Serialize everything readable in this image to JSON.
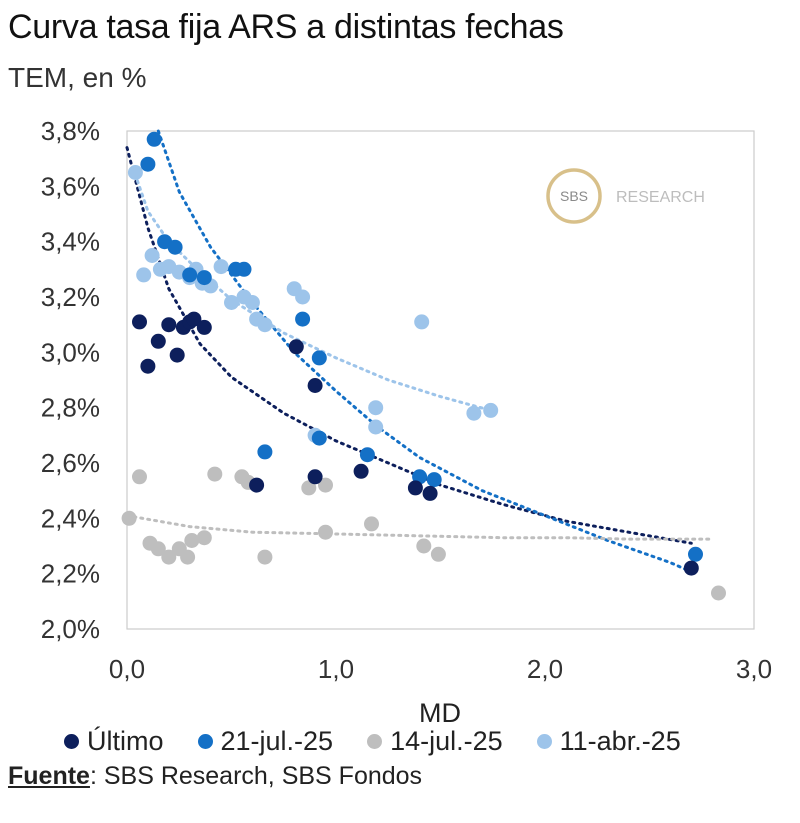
{
  "header": {
    "title": "Curva tasa fija ARS a distintas fechas",
    "subtitle": "TEM, en %"
  },
  "source": {
    "label": "Fuente",
    "text": ": SBS Research, SBS Fondos"
  },
  "watermark": {
    "logo_text": "SBS",
    "text": "RESEARCH"
  },
  "chart_data": {
    "type": "scatter",
    "title": "Curva tasa fija ARS a distintas fechas",
    "subtitle": "TEM, en %",
    "xlabel": "MD",
    "ylabel": "",
    "xlim": [
      0,
      3
    ],
    "ylim": [
      2.0,
      3.8
    ],
    "xticks": [
      "0,0",
      "1,0",
      "2,0",
      "3,0"
    ],
    "xtick_values": [
      0,
      1,
      2,
      3
    ],
    "yticks": [
      "2,0%",
      "2,2%",
      "2,4%",
      "2,6%",
      "2,8%",
      "3,0%",
      "3,2%",
      "3,4%",
      "3,6%",
      "3,8%"
    ],
    "ytick_values": [
      2.0,
      2.2,
      2.4,
      2.6,
      2.8,
      3.0,
      3.2,
      3.4,
      3.6,
      3.8
    ],
    "legend_position": "bottom",
    "series": [
      {
        "name": "Último",
        "color": "#0d1f5c",
        "points": [
          [
            0.06,
            3.11
          ],
          [
            0.1,
            2.95
          ],
          [
            0.15,
            3.04
          ],
          [
            0.2,
            3.1
          ],
          [
            0.24,
            2.99
          ],
          [
            0.27,
            3.09
          ],
          [
            0.3,
            3.11
          ],
          [
            0.32,
            3.12
          ],
          [
            0.37,
            3.09
          ],
          [
            0.62,
            2.52
          ],
          [
            0.81,
            3.02
          ],
          [
            0.9,
            2.88
          ],
          [
            0.9,
            2.55
          ],
          [
            1.12,
            2.57
          ],
          [
            1.38,
            2.51
          ],
          [
            1.45,
            2.49
          ],
          [
            2.7,
            2.22
          ]
        ],
        "trend": [
          [
            0.0,
            3.74
          ],
          [
            0.1,
            3.45
          ],
          [
            0.2,
            3.23
          ],
          [
            0.35,
            3.03
          ],
          [
            0.5,
            2.91
          ],
          [
            0.75,
            2.78
          ],
          [
            1.0,
            2.68
          ],
          [
            1.25,
            2.6
          ],
          [
            1.5,
            2.52
          ],
          [
            1.8,
            2.45
          ],
          [
            2.1,
            2.39
          ],
          [
            2.4,
            2.35
          ],
          [
            2.7,
            2.31
          ]
        ]
      },
      {
        "name": "21-jul.-25",
        "color": "#1470c6",
        "points": [
          [
            0.1,
            3.68
          ],
          [
            0.13,
            3.77
          ],
          [
            0.18,
            3.4
          ],
          [
            0.23,
            3.38
          ],
          [
            0.3,
            3.28
          ],
          [
            0.37,
            3.27
          ],
          [
            0.52,
            3.3
          ],
          [
            0.56,
            3.3
          ],
          [
            0.66,
            2.64
          ],
          [
            0.84,
            3.12
          ],
          [
            0.92,
            2.98
          ],
          [
            0.92,
            2.69
          ],
          [
            1.15,
            2.63
          ],
          [
            1.4,
            2.55
          ],
          [
            1.47,
            2.54
          ],
          [
            2.72,
            2.27
          ]
        ],
        "trend": [
          [
            0.15,
            3.8
          ],
          [
            0.25,
            3.58
          ],
          [
            0.4,
            3.38
          ],
          [
            0.6,
            3.18
          ],
          [
            0.8,
            3.0
          ],
          [
            1.0,
            2.86
          ],
          [
            1.2,
            2.73
          ],
          [
            1.4,
            2.62
          ],
          [
            1.7,
            2.5
          ],
          [
            2.0,
            2.41
          ],
          [
            2.3,
            2.32
          ],
          [
            2.6,
            2.24
          ],
          [
            2.72,
            2.2
          ]
        ]
      },
      {
        "name": "14-jul.-25",
        "color": "#bebebe",
        "points": [
          [
            0.01,
            2.4
          ],
          [
            0.06,
            2.55
          ],
          [
            0.11,
            2.31
          ],
          [
            0.15,
            2.29
          ],
          [
            0.2,
            2.26
          ],
          [
            0.25,
            2.29
          ],
          [
            0.29,
            2.26
          ],
          [
            0.31,
            2.32
          ],
          [
            0.37,
            2.33
          ],
          [
            0.42,
            2.56
          ],
          [
            0.55,
            2.55
          ],
          [
            0.58,
            2.53
          ],
          [
            0.66,
            2.26
          ],
          [
            0.87,
            2.51
          ],
          [
            0.95,
            2.52
          ],
          [
            0.95,
            2.35
          ],
          [
            1.17,
            2.38
          ],
          [
            1.42,
            2.3
          ],
          [
            1.49,
            2.27
          ],
          [
            2.83,
            2.13
          ]
        ],
        "trend": [
          [
            0.0,
            2.41
          ],
          [
            0.3,
            2.37
          ],
          [
            0.6,
            2.35
          ],
          [
            0.9,
            2.345
          ],
          [
            1.2,
            2.34
          ],
          [
            1.5,
            2.335
          ],
          [
            1.8,
            2.33
          ],
          [
            2.1,
            2.33
          ],
          [
            2.4,
            2.325
          ],
          [
            2.8,
            2.325
          ]
        ]
      },
      {
        "name": "11-abr.-25",
        "color": "#9dc4ea",
        "points": [
          [
            0.04,
            3.65
          ],
          [
            0.08,
            3.28
          ],
          [
            0.12,
            3.35
          ],
          [
            0.16,
            3.3
          ],
          [
            0.2,
            3.31
          ],
          [
            0.25,
            3.29
          ],
          [
            0.3,
            3.27
          ],
          [
            0.33,
            3.3
          ],
          [
            0.36,
            3.25
          ],
          [
            0.4,
            3.24
          ],
          [
            0.45,
            3.31
          ],
          [
            0.5,
            3.18
          ],
          [
            0.56,
            3.2
          ],
          [
            0.6,
            3.18
          ],
          [
            0.62,
            3.12
          ],
          [
            0.66,
            3.1
          ],
          [
            0.8,
            3.23
          ],
          [
            0.84,
            3.2
          ],
          [
            0.9,
            2.7
          ],
          [
            1.19,
            2.8
          ],
          [
            1.19,
            2.73
          ],
          [
            1.41,
            3.11
          ],
          [
            1.66,
            2.78
          ],
          [
            1.74,
            2.79
          ]
        ],
        "trend": [
          [
            0.05,
            3.62
          ],
          [
            0.1,
            3.51
          ],
          [
            0.2,
            3.4
          ],
          [
            0.35,
            3.29
          ],
          [
            0.5,
            3.19
          ],
          [
            0.75,
            3.07
          ],
          [
            1.0,
            2.98
          ],
          [
            1.25,
            2.9
          ],
          [
            1.5,
            2.84
          ],
          [
            1.74,
            2.79
          ]
        ]
      }
    ]
  }
}
